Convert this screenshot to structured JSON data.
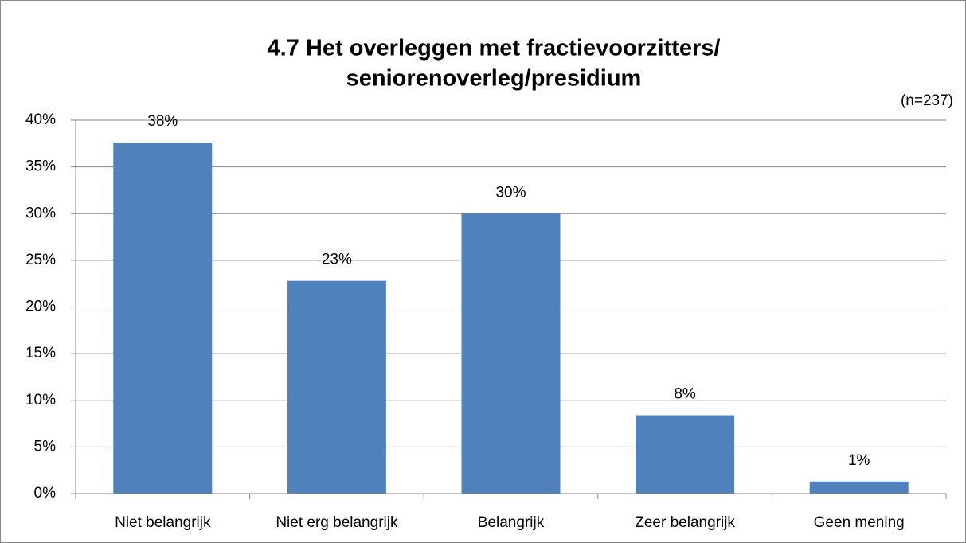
{
  "chart_data": {
    "type": "bar",
    "title": [
      "4.7 Het overleggen met fractievoorzitters/",
      "seniorenoverleg/presidium"
    ],
    "annotation": "(n=237)",
    "categories": [
      "Niet belangrijk",
      "Niet erg belangrijk",
      "Belangrijk",
      "Zeer belangrijk",
      "Geen mening"
    ],
    "values": [
      37.6,
      22.8,
      30.0,
      8.4,
      1.3
    ],
    "value_labels": [
      "38%",
      "23%",
      "30%",
      "8%",
      "1%"
    ],
    "color": "#4f81bd",
    "ylim": [
      0,
      40
    ],
    "yticks": [
      {
        "value": 0,
        "label": "0%"
      },
      {
        "value": 5,
        "label": "5%"
      },
      {
        "value": 10,
        "label": "10%"
      },
      {
        "value": 15,
        "label": "15%"
      },
      {
        "value": 20,
        "label": "20%"
      },
      {
        "value": 25,
        "label": "25%"
      },
      {
        "value": 30,
        "label": "30%"
      },
      {
        "value": 35,
        "label": "35%"
      },
      {
        "value": 40,
        "label": "40%"
      }
    ],
    "grid": true
  }
}
